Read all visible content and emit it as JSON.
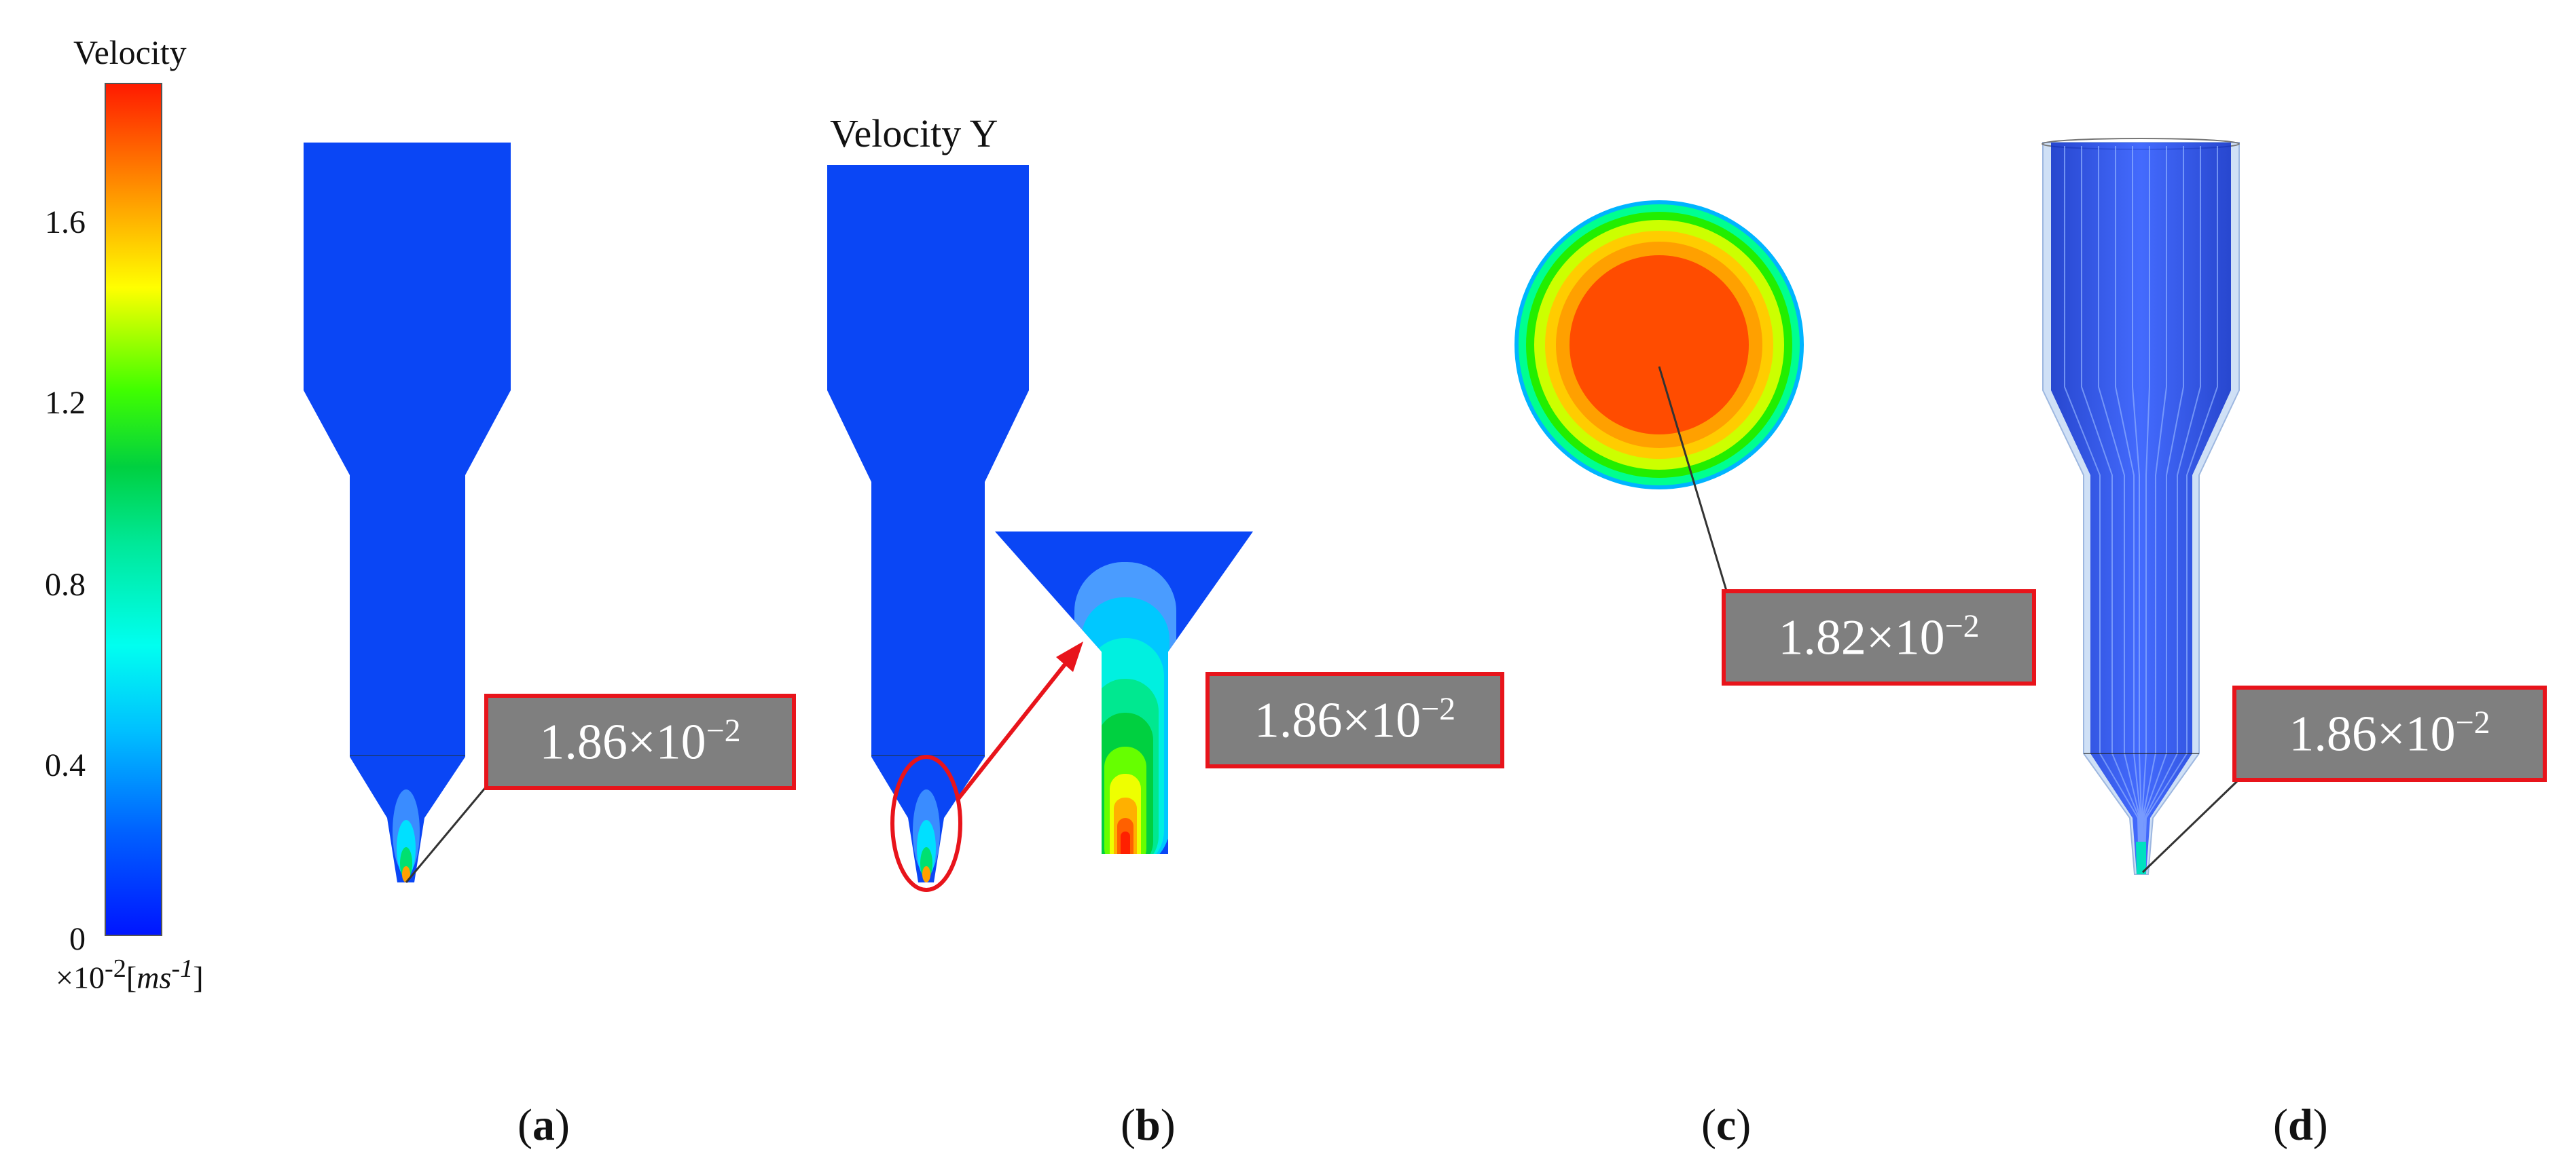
{
  "colorbar": {
    "title": "Velocity",
    "ticks": [
      "1.6",
      "1.2",
      "0.8",
      "0.4",
      "0"
    ],
    "tick_values": [
      1.6,
      1.2,
      0.8,
      0.4,
      0
    ],
    "range": [
      0,
      1.86
    ],
    "unit_prefix": "×10",
    "unit_exp": "-2",
    "unit_open": "[",
    "unit_ms": "ms",
    "unit_ms_exp": "-1",
    "unit_close": "]",
    "colors": [
      "#0015ff",
      "#00b4ff",
      "#00fff0",
      "#00e060",
      "#4cff00",
      "#ffff00",
      "#ffa000",
      "#ff4000",
      "#ff1a00"
    ]
  },
  "panel_b_title": "Velocity Y",
  "callouts": {
    "a": {
      "mantissa": "1.86×10",
      "exponent": "−2"
    },
    "b": {
      "mantissa": "1.86×10",
      "exponent": "−2"
    },
    "c": {
      "mantissa": "1.82×10",
      "exponent": "−2"
    },
    "d": {
      "mantissa": "1.86×10",
      "exponent": "−2"
    }
  },
  "captions": {
    "a": {
      "open": "(",
      "letter": "a",
      "close": ")"
    },
    "b": {
      "open": "(",
      "letter": "b",
      "close": ")"
    },
    "c": {
      "open": "(",
      "letter": "c",
      "close": ")"
    },
    "d": {
      "open": "(",
      "letter": "d",
      "close": ")"
    }
  },
  "colors": {
    "body_blue": "#0a46f5",
    "callout_fill": "#7f7f7f",
    "callout_border": "#e8141b",
    "annotation_red": "#e8141b"
  }
}
